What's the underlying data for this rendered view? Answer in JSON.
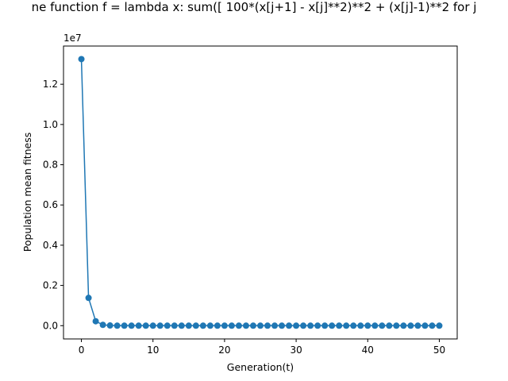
{
  "chart_data": {
    "type": "line",
    "title": "ne function      f = lambda x: sum([ 100*(x[j+1] - x[j]**2)**2 + (x[j]-1)**2 for j",
    "xlabel": "Generation(t)",
    "ylabel": "Population mean fitness",
    "y_offset_label": "1e7",
    "xlim": [
      -2.5,
      52.5
    ],
    "ylim": [
      -0.066,
      1.39
    ],
    "y_scale_factor": 10000000,
    "x_ticks": [
      0,
      10,
      20,
      30,
      40,
      50
    ],
    "x_tick_labels": [
      "0",
      "10",
      "20",
      "30",
      "40",
      "50"
    ],
    "y_ticks": [
      0.0,
      0.2,
      0.4,
      0.6,
      0.8,
      1.0,
      1.2
    ],
    "y_tick_labels": [
      "0.0",
      "0.2",
      "0.4",
      "0.6",
      "0.8",
      "1.0",
      "1.2"
    ],
    "grid": false,
    "legend": "none",
    "series": [
      {
        "color": "#1f77b4",
        "marker": "circle",
        "x": [
          0,
          1,
          2,
          3,
          4,
          5,
          6,
          7,
          8,
          9,
          10,
          11,
          12,
          13,
          14,
          15,
          16,
          17,
          18,
          19,
          20,
          21,
          22,
          23,
          24,
          25,
          26,
          27,
          28,
          29,
          30,
          31,
          32,
          33,
          34,
          35,
          36,
          37,
          38,
          39,
          40,
          41,
          42,
          43,
          44,
          45,
          46,
          47,
          48,
          49,
          50
        ],
        "y": [
          1.325,
          0.138,
          0.022,
          0.004,
          0.001,
          0,
          0,
          0,
          0,
          0,
          0,
          0,
          0,
          0,
          0,
          0,
          0,
          0,
          0,
          0,
          0,
          0,
          0,
          0,
          0,
          0,
          0,
          0,
          0,
          0,
          0,
          0,
          0,
          0,
          0,
          0,
          0,
          0,
          0,
          0,
          0,
          0,
          0,
          0,
          0,
          0,
          0,
          0,
          0,
          0,
          0
        ]
      }
    ]
  }
}
